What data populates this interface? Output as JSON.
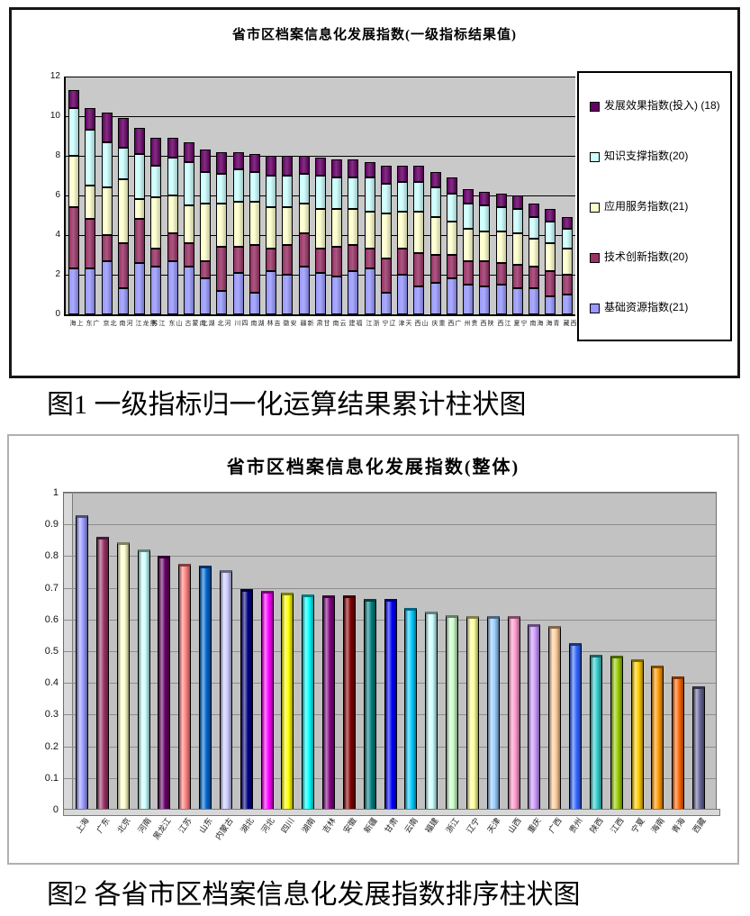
{
  "figure1": {
    "caption": "图1 一级指标归一化运算结果累计柱状图"
  },
  "figure2": {
    "caption": "图2 各省市区档案信息化发展指数排序柱状图"
  },
  "chart_data": [
    {
      "type": "bar",
      "stacked": true,
      "title": "省市区档案信息化发展指数(一级指标结果值)",
      "xlabel": "",
      "ylabel": "",
      "ylim": [
        0,
        12
      ],
      "yticks": [
        0,
        2,
        4,
        6,
        8,
        10,
        12
      ],
      "grid": true,
      "legend_position": "right",
      "categories": [
        "上海",
        "广东",
        "北京",
        "河南",
        "黑龙江",
        "江苏",
        "山东",
        "内蒙古",
        "湖北",
        "河北",
        "四川",
        "湖南",
        "吉林",
        "安徽",
        "新疆",
        "甘肃",
        "云南",
        "福建",
        "浙江",
        "辽宁",
        "天津",
        "山西",
        "重庆",
        "广西",
        "贵州",
        "陕西",
        "江西",
        "宁夏",
        "海南",
        "青海",
        "西藏"
      ],
      "series": [
        {
          "name": "基础资源指数(21)",
          "color": "#9999FF",
          "values": [
            2.3,
            2.3,
            2.7,
            1.3,
            2.6,
            2.4,
            2.7,
            2.4,
            1.8,
            1.2,
            2.1,
            1.1,
            2.2,
            2.0,
            2.4,
            2.1,
            1.9,
            2.2,
            2.3,
            1.1,
            2.0,
            1.4,
            1.6,
            1.8,
            1.5,
            1.4,
            1.5,
            1.3,
            1.3,
            0.9,
            1.0
          ]
        },
        {
          "name": "技术创新指数(20)",
          "color": "#993366",
          "values": [
            3.1,
            2.5,
            1.3,
            2.3,
            2.2,
            0.9,
            1.4,
            1.2,
            0.9,
            2.2,
            1.3,
            2.4,
            1.1,
            1.5,
            1.7,
            1.2,
            1.5,
            1.3,
            1.0,
            1.7,
            1.3,
            1.7,
            1.4,
            1.2,
            1.2,
            1.3,
            1.1,
            1.2,
            1.1,
            1.3,
            1.0
          ]
        },
        {
          "name": "应用服务指数(21)",
          "color": "#FFFFCC",
          "values": [
            2.6,
            1.7,
            2.4,
            3.2,
            1.0,
            2.6,
            1.9,
            1.9,
            2.9,
            2.2,
            2.3,
            2.2,
            2.1,
            1.9,
            1.5,
            2.0,
            1.9,
            1.8,
            1.9,
            2.3,
            1.9,
            2.1,
            1.9,
            1.7,
            1.6,
            1.5,
            1.6,
            1.6,
            1.4,
            1.4,
            1.3
          ]
        },
        {
          "name": "知识支撑指数(20)",
          "color": "#CCFFFF",
          "values": [
            2.4,
            2.8,
            2.3,
            1.6,
            2.3,
            1.6,
            1.9,
            2.2,
            1.6,
            1.5,
            1.6,
            1.5,
            1.6,
            1.6,
            1.5,
            1.7,
            1.6,
            1.6,
            1.7,
            1.5,
            1.5,
            1.5,
            1.5,
            1.4,
            1.3,
            1.3,
            1.2,
            1.2,
            1.1,
            1.1,
            1.0
          ]
        },
        {
          "name": "发展效果指数(投入)(18)",
          "color": "#660066",
          "values": [
            0.9,
            1.1,
            1.5,
            1.5,
            1.3,
            1.4,
            1.0,
            1.0,
            1.1,
            1.1,
            0.9,
            0.9,
            1.0,
            1.0,
            0.9,
            0.9,
            0.9,
            0.9,
            0.8,
            0.9,
            0.8,
            0.8,
            0.8,
            0.8,
            0.7,
            0.7,
            0.7,
            0.7,
            0.7,
            0.6,
            0.6
          ]
        }
      ],
      "legend": [
        {
          "label": "发展效果指数(投入) (18)",
          "color": "#660066"
        },
        {
          "label": "知识支撑指数(20)",
          "color": "#CCFFFF"
        },
        {
          "label": "应用服务指数(21)",
          "color": "#FFFFCC"
        },
        {
          "label": "技术创新指数(20)",
          "color": "#993366"
        },
        {
          "label": "基础资源指数(21)",
          "color": "#9999FF"
        }
      ]
    },
    {
      "type": "bar",
      "stacked": false,
      "title": "省市区档案信息化发展指数(整体)",
      "xlabel": "",
      "ylabel": "",
      "ylim": [
        0,
        1
      ],
      "ytick_labels": [
        "0",
        "0.1",
        "0.2",
        "0.3",
        "0.4",
        "0.5",
        "0.6",
        "0.7",
        "0.8",
        "0.9",
        "1"
      ],
      "grid": true,
      "legend_position": "none",
      "categories": [
        "上海",
        "广东",
        "北京",
        "河南",
        "黑龙江",
        "江苏",
        "山东",
        "内蒙古",
        "湖北",
        "河北",
        "四川",
        "湖南",
        "吉林",
        "安徽",
        "新疆",
        "甘肃",
        "云南",
        "福建",
        "浙江",
        "辽宁",
        "天津",
        "山西",
        "重庆",
        "广西",
        "贵州",
        "陕西",
        "江西",
        "宁夏",
        "海南",
        "青海",
        "西藏"
      ],
      "values": [
        0.93,
        0.86,
        0.845,
        0.82,
        0.8,
        0.775,
        0.77,
        0.755,
        0.695,
        0.69,
        0.685,
        0.68,
        0.675,
        0.675,
        0.665,
        0.665,
        0.635,
        0.625,
        0.615,
        0.61,
        0.61,
        0.61,
        0.585,
        0.58,
        0.525,
        0.49,
        0.485,
        0.475,
        0.455,
        0.42,
        0.39
      ],
      "bar_colors": [
        "#9999FF",
        "#993366",
        "#FFFFCC",
        "#CCFFFF",
        "#660066",
        "#FF8080",
        "#0066CC",
        "#CCCCFF",
        "#000080",
        "#FF00FF",
        "#FFFF00",
        "#00FFFF",
        "#800080",
        "#800000",
        "#008080",
        "#0000FF",
        "#00CCFF",
        "#CCFFFF",
        "#CCFFCC",
        "#FFFF99",
        "#99CCFF",
        "#FF99CC",
        "#CC99FF",
        "#FFCC99",
        "#3366FF",
        "#33CCCC",
        "#99CC00",
        "#FFCC00",
        "#FF9900",
        "#FF6600",
        "#666699"
      ]
    }
  ]
}
